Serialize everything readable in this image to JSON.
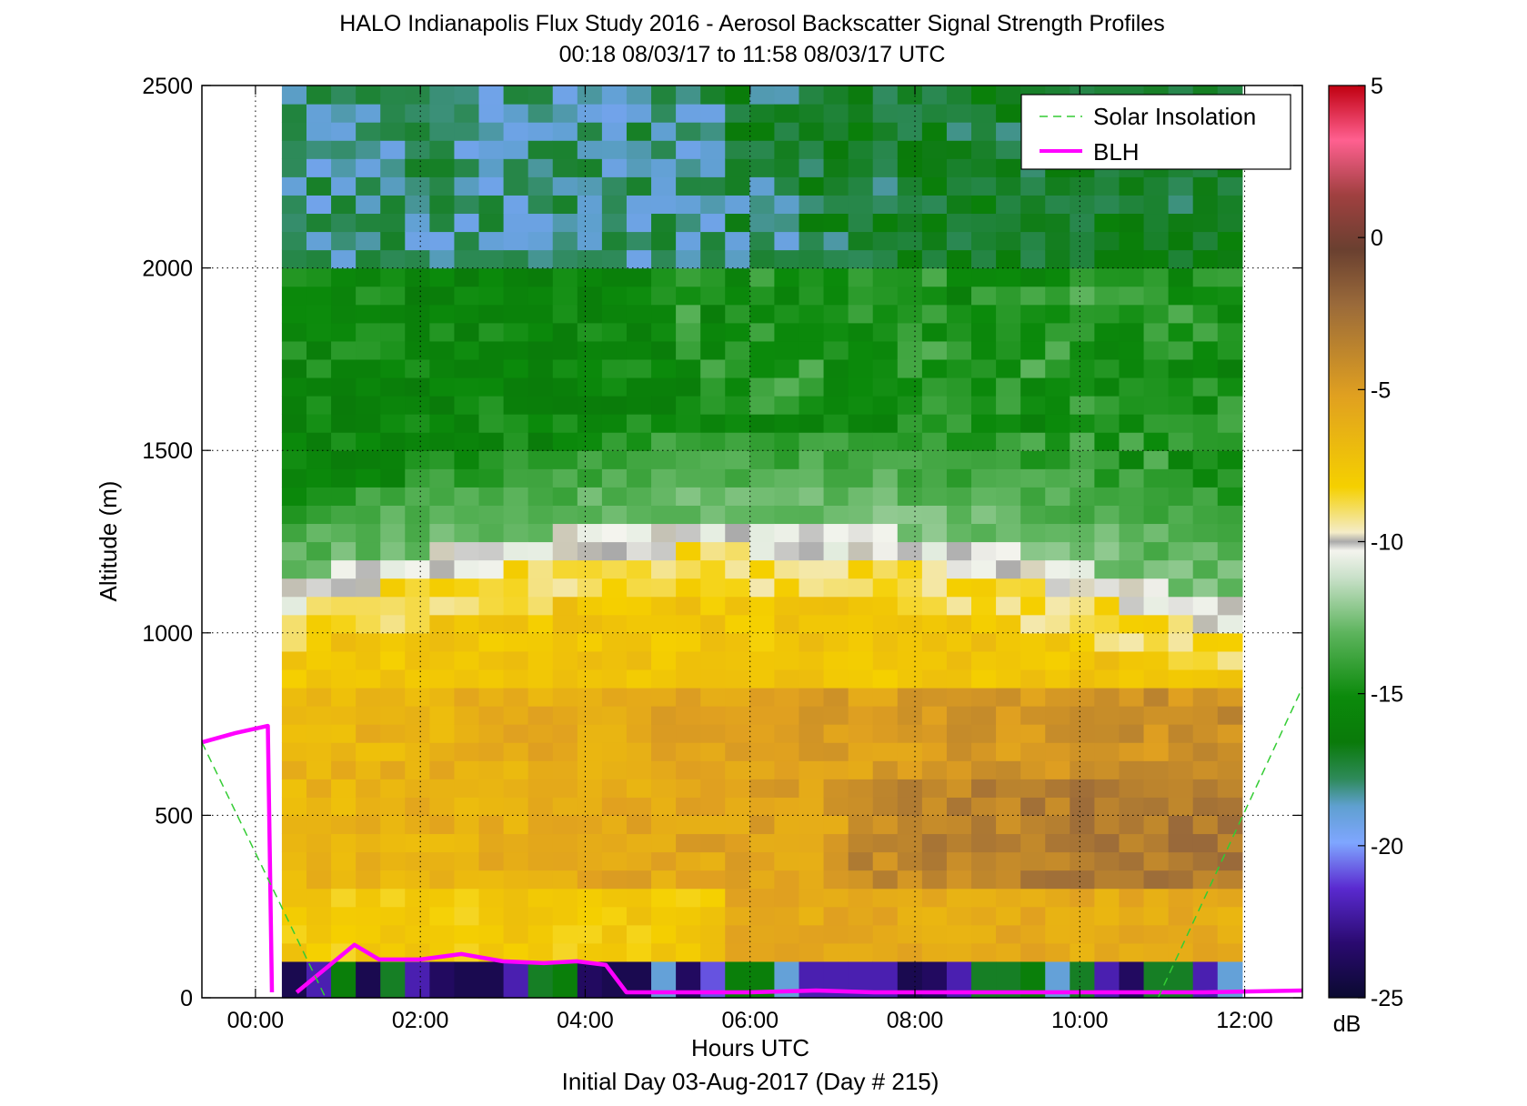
{
  "chart_data": {
    "type": "heatmap",
    "title": "HALO Indianapolis Flux Study 2016 - Aerosol Backscatter Signal Strength Profiles",
    "subtitle": "00:18 08/03/17 to 11:58 08/03/17  UTC",
    "xlabel": "Hours UTC",
    "xlabel2": "Initial Day 03-Aug-2017 (Day # 215)",
    "ylabel": "Altitude (m)",
    "xlim_hours": [
      -0.65,
      12.7
    ],
    "ylim": [
      0,
      2500
    ],
    "x_ticks": [
      {
        "value": 0,
        "label": "00:00"
      },
      {
        "value": 2,
        "label": "02:00"
      },
      {
        "value": 4,
        "label": "04:00"
      },
      {
        "value": 6,
        "label": "06:00"
      },
      {
        "value": 8,
        "label": "08:00"
      },
      {
        "value": 10,
        "label": "10:00"
      },
      {
        "value": 12,
        "label": "12:00"
      }
    ],
    "y_ticks": [
      0,
      500,
      1000,
      1500,
      2000,
      2500
    ],
    "y_tick_labels": [
      "0",
      "500",
      "1000",
      "1500",
      "2000",
      "2500"
    ],
    "grid": "dotted",
    "colorbar": {
      "unit_label": "dB",
      "range": [
        -25,
        5
      ],
      "ticks": [
        5,
        0,
        -5,
        -10,
        -15,
        -20,
        -25
      ],
      "tick_labels": [
        "5",
        "0",
        "-5",
        "-10",
        "-15",
        "-20",
        "-25"
      ]
    },
    "heatmap_profile": {
      "data_start_hour": 0.32,
      "data_end_hour": 11.97,
      "column_count": 39,
      "altitude_bin_m": 50,
      "top_altitude_m": 2500,
      "notes_bins_dB_by_altitude_band": [
        {
          "alt_max": 100,
          "value_dB": -22
        },
        {
          "alt_max": 300,
          "value_dB": -8
        },
        {
          "alt_max": 800,
          "value_dB": -6
        },
        {
          "alt_max": 1100,
          "value_dB": -7.5
        },
        {
          "alt_max": 1400,
          "value_dB": -12
        },
        {
          "alt_max": 2000,
          "value_dB": -15.5
        },
        {
          "alt_max": 2500,
          "value_dB": -17.5
        }
      ]
    },
    "legend": {
      "placement": "top-right",
      "entries": [
        {
          "label": "Solar Insolation",
          "color": "#33cc33",
          "style": "dashed"
        },
        {
          "label": "BLH",
          "color": "#ff00ff",
          "style": "solid"
        }
      ]
    },
    "series": [
      {
        "name": "BLH",
        "color": "#ff00ff",
        "x": [
          -0.65,
          -0.25,
          0.15,
          0.2
        ],
        "y": [
          700,
          725,
          745,
          15
        ]
      },
      {
        "name": "BLH",
        "color": "#ff00ff",
        "x": [
          0.5,
          1.2,
          1.5,
          2.0,
          2.5,
          3.0,
          3.5,
          3.9,
          4.25,
          4.5,
          5.0,
          6.0,
          6.8,
          7.5,
          8.5,
          10.0,
          11.5,
          12.7
        ],
        "y": [
          15,
          145,
          105,
          105,
          120,
          100,
          95,
          100,
          90,
          15,
          15,
          15,
          20,
          15,
          15,
          15,
          15,
          20
        ]
      },
      {
        "name": "Solar Insolation",
        "color": "#33cc33",
        "x": [
          -0.65,
          0.85
        ],
        "y": [
          700,
          0
        ]
      },
      {
        "name": "Solar Insolation",
        "color": "#33cc33",
        "x": [
          10.95,
          12.7
        ],
        "y": [
          0,
          850
        ]
      }
    ]
  }
}
